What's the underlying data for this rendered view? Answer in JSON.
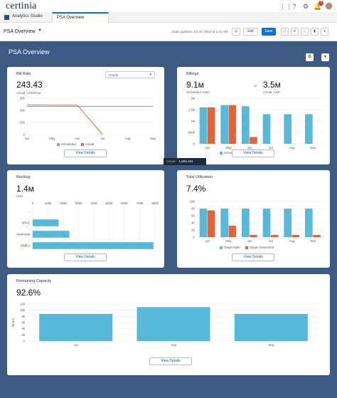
{
  "header": {
    "logo": "certinia"
  },
  "tabs": {
    "app_name": "Analytics Studio",
    "active_tab": "PSA Overview"
  },
  "dashboard": {
    "title": "PSA Overview",
    "updated": "Data updated: Jul 26, 2023 at 1:21 AM",
    "edit_label": "Edit",
    "save_label": "Save",
    "canvas_title": "PSA Overview"
  },
  "colors": {
    "scheduled": "#56b9d9",
    "actual": "#e4643a",
    "brand": "#0176d3",
    "canvas": "#3d5b82"
  },
  "tooltip": {
    "label": "Actual",
    "value": "1,582,154"
  },
  "cards": {
    "bill_rate": {
      "title": "Bill Rate",
      "value": "243.43",
      "sub": "Actual, USD/Hour",
      "select": "Hourly",
      "view_details": "View Details",
      "legend": [
        "Scheduled",
        "Actual"
      ]
    },
    "billings": {
      "title": "Billings",
      "value1": "9.1м",
      "sub1": "Scheduled, USD",
      "vs": "vs",
      "value2": "3.5м",
      "sub2": "Actual, USD",
      "view_details": "View Details",
      "legend": [
        "Scheduled",
        "Actual"
      ]
    },
    "backlog": {
      "title": "Backlog",
      "value": "1.4м",
      "sub": "USD",
      "view_details": "View Details"
    },
    "utilization": {
      "title": "Total Utilization",
      "value": "7.4%",
      "view_details": "View Details",
      "legend": [
        "Target Rate",
        "Target Attainment"
      ]
    },
    "capacity": {
      "title": "Remaining Capacity",
      "value": "92.6%",
      "view_details": "View Details"
    }
  },
  "chart_data": [
    {
      "type": "line",
      "categories": [
        "Apr",
        "May",
        "Jun",
        "Jul",
        "Aug",
        "Sep"
      ],
      "series": [
        {
          "name": "Scheduled",
          "values": [
            232,
            232,
            232,
            232,
            232,
            232
          ]
        },
        {
          "name": "Actual",
          "values": [
            245,
            243,
            243,
            0,
            null,
            null
          ]
        }
      ],
      "ylim": [
        0,
        300
      ],
      "yticks": [
        0,
        100,
        200,
        300
      ],
      "ytick_labels": [
        "0",
        "100",
        "200",
        "300"
      ]
    },
    {
      "type": "bar",
      "categories": [
        "Apr",
        "May",
        "Jun",
        "Jul",
        "Aug",
        "Sep"
      ],
      "series": [
        {
          "name": "Scheduled",
          "values": [
            1.6,
            1.7,
            1.65,
            1.3,
            1.3,
            1.3
          ]
        },
        {
          "name": "Actual",
          "values": [
            1.6,
            1.7,
            0.3,
            0,
            0,
            0
          ]
        }
      ],
      "ylim": [
        0,
        2
      ],
      "yticks": [
        0,
        0.5,
        1,
        1.5,
        2
      ],
      "ytick_labels": [
        "0",
        "500k",
        "1м",
        "1.5м",
        "2м"
      ]
    },
    {
      "type": "bar",
      "orientation": "horizontal",
      "categories": [
        "-",
        "APAC",
        "Americas",
        "EMEA"
      ],
      "values": [
        0,
        170000,
        240000,
        790000
      ],
      "xlim": [
        0,
        800000
      ],
      "xticks": [
        0,
        100000,
        200000,
        300000,
        400000,
        500000,
        600000,
        700000,
        800000
      ],
      "xtick_labels": [
        "0",
        "100k",
        "200k",
        "300k",
        "400k",
        "500k",
        "600k",
        "700k",
        "800k"
      ]
    },
    {
      "type": "bar",
      "categories": [
        "Apr",
        "May",
        "Jun",
        "Jul",
        "Aug",
        "Sep"
      ],
      "series": [
        {
          "name": "Target Rate",
          "values": [
            80,
            80,
            80,
            80,
            80,
            80
          ]
        },
        {
          "name": "Target Attainment",
          "values": [
            75,
            32,
            6,
            6,
            6,
            6
          ]
        }
      ],
      "ylim": [
        0,
        100
      ],
      "yticks": [
        0,
        20,
        40,
        60,
        80,
        100
      ],
      "ytick_labels": [
        "0",
        "20",
        "40",
        "60",
        "80",
        "100"
      ]
    },
    {
      "type": "bar",
      "categories": [
        "Jul",
        "Aug",
        "Sep"
      ],
      "values": [
        8800,
        11000,
        8800
      ],
      "ylabel": "Hours",
      "ylim": [
        0,
        12000
      ],
      "yticks": [
        0,
        2000,
        4000,
        6000,
        8000,
        10000,
        12000
      ],
      "ytick_labels": [
        "0",
        "2k",
        "4k",
        "6k",
        "8k",
        "10k",
        "12k"
      ]
    }
  ]
}
